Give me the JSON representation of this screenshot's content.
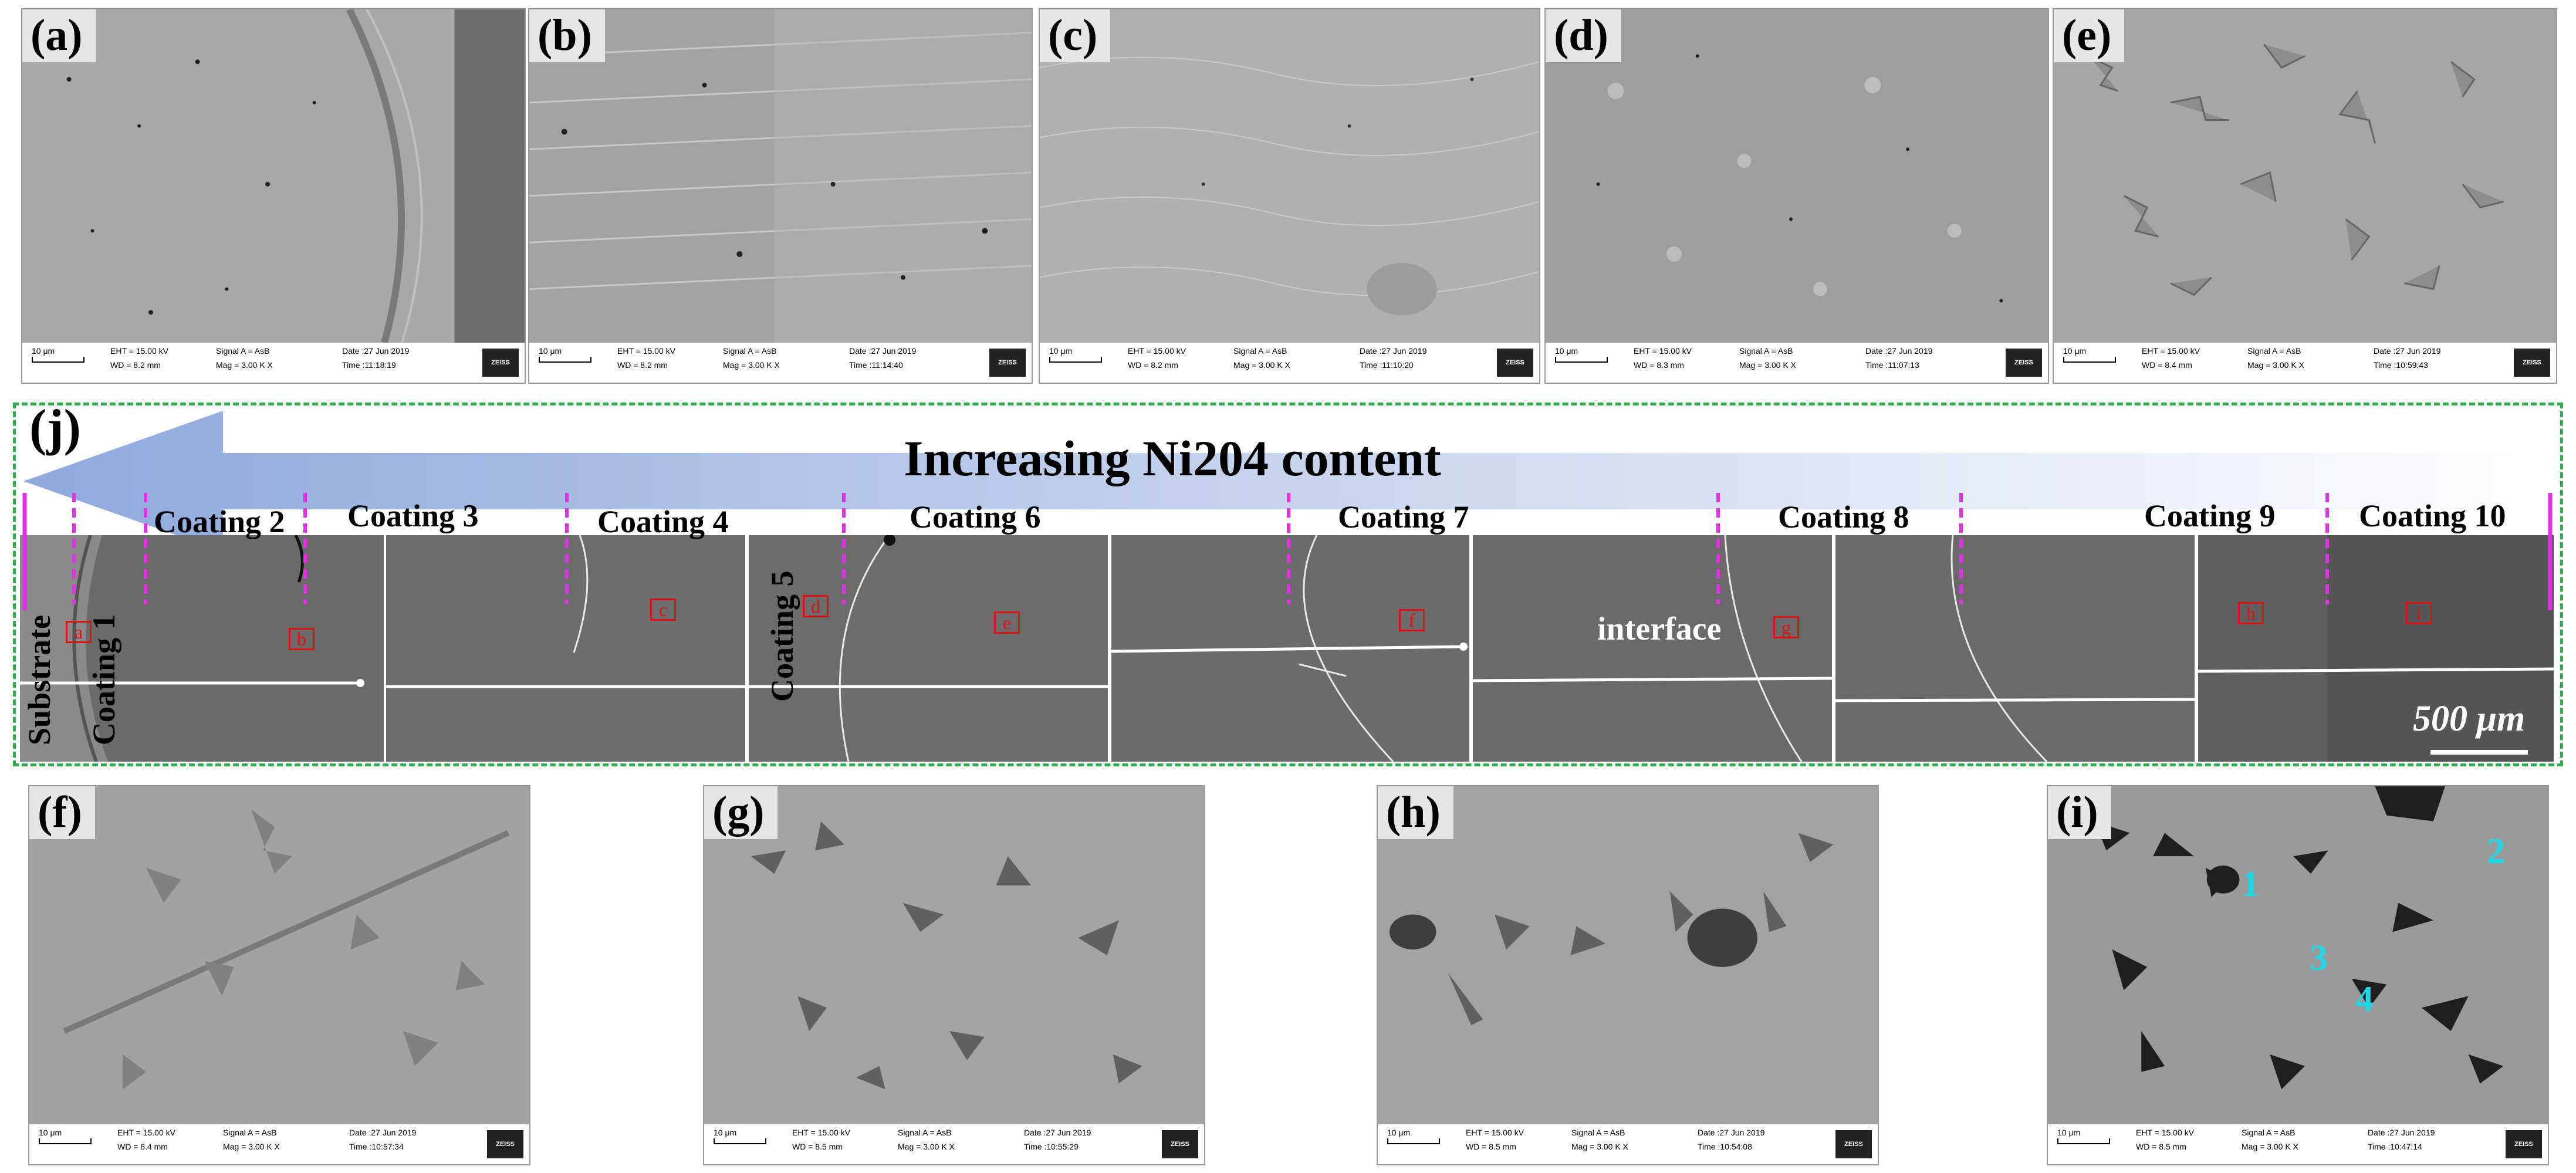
{
  "panels_top": [
    {
      "label": "(a)",
      "eht": "EHT = 15.00 kV",
      "wd": "WD = 8.2 mm",
      "signal": "Signal A = AsB",
      "mag": "Mag =  3.00 K X",
      "date": "Date :27 Jun 2019",
      "time": "Time :11:18:19"
    },
    {
      "label": "(b)",
      "eht": "EHT = 15.00 kV",
      "wd": "WD = 8.2 mm",
      "signal": "Signal A = AsB",
      "mag": "Mag =  3.00 K X",
      "date": "Date :27 Jun 2019",
      "time": "Time :11:14:40"
    },
    {
      "label": "(c)",
      "eht": "EHT = 15.00 kV",
      "wd": "WD = 8.2 mm",
      "signal": "Signal A = AsB",
      "mag": "Mag =  3.00 K X",
      "date": "Date :27 Jun 2019",
      "time": "Time :11:10:20"
    },
    {
      "label": "(d)",
      "eht": "EHT = 15.00 kV",
      "wd": "WD = 8.3 mm",
      "signal": "Signal A = AsB",
      "mag": "Mag =  3.00 K X",
      "date": "Date :27 Jun 2019",
      "time": "Time :11:07:13"
    },
    {
      "label": "(e)",
      "eht": "EHT = 15.00 kV",
      "wd": "WD = 8.4 mm",
      "signal": "Signal A = AsB",
      "mag": "Mag =  3.00 K X",
      "date": "Date :27 Jun 2019",
      "time": "Time :10:59:43"
    }
  ],
  "panels_bottom": [
    {
      "label": "(f)",
      "eht": "EHT = 15.00 kV",
      "wd": "WD = 8.4 mm",
      "signal": "Signal A = AsB",
      "mag": "Mag =  3.00 K X",
      "date": "Date :27 Jun 2019",
      "time": "Time :10:57:34"
    },
    {
      "label": "(g)",
      "eht": "EHT = 15.00 kV",
      "wd": "WD = 8.5 mm",
      "signal": "Signal A = AsB",
      "mag": "Mag =  3.00 K X",
      "date": "Date :27 Jun 2019",
      "time": "Time :10:55:29"
    },
    {
      "label": "(h)",
      "eht": "EHT = 15.00 kV",
      "wd": "WD = 8.5 mm",
      "signal": "Signal A = AsB",
      "mag": "Mag =  3.00 K X",
      "date": "Date :27 Jun 2019",
      "time": "Time :10:54:08"
    },
    {
      "label": "(i)",
      "eht": "EHT = 15.00 kV",
      "wd": "WD = 8.5 mm",
      "signal": "Signal A = AsB",
      "mag": "Mag =  3.00 K X",
      "date": "Date :27 Jun 2019",
      "time": "Time :10:47:14"
    }
  ],
  "scalebar_small": "10 μm",
  "zeiss": "ZEISS",
  "composite": {
    "label": "(j)",
    "arrow_text": "Increasing Ni204 content",
    "coatings": [
      "Coating 2",
      "Coating 3",
      "Coating 4",
      "Coating 6",
      "Coating 7",
      "Coating 8",
      "Coating 9",
      "Coating 10"
    ],
    "substrate": "Substrate",
    "coating1": "Coating 1",
    "coating5": "Coating 5",
    "interface": "interface",
    "scalebar": "500 μm",
    "boxes": [
      "a",
      "b",
      "c",
      "d",
      "e",
      "f",
      "g",
      "h",
      "i"
    ]
  },
  "markers_i": [
    "1",
    "2",
    "3",
    "4"
  ],
  "colors": {
    "dashed_border": "#2fb04f",
    "magenta": "#e62ee6",
    "red_box": "#e01010",
    "arrow": "#a8bde3",
    "marker": "#1fd6e6"
  }
}
